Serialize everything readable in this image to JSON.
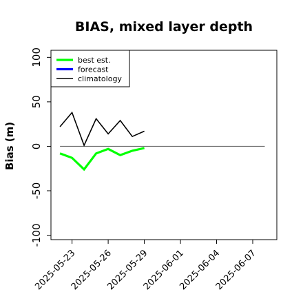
{
  "chart_data": {
    "type": "line",
    "title": "BIAS, mixed layer depth",
    "ylabel": "Bias (m)",
    "xlabel": "",
    "ylim": [
      -105,
      108
    ],
    "xlim": [
      "2025-05-21 06:00",
      "2025-06-09"
    ],
    "yticks": [
      -100,
      -50,
      0,
      50,
      100
    ],
    "xticks": [
      {
        "date": "2025-05-23",
        "label": "2025-05-23",
        "color": "#000000"
      },
      {
        "date": "2025-05-26",
        "label": "2025-05-26",
        "color": "#000000"
      },
      {
        "date": "2025-05-29",
        "label": "2025-05-29",
        "color": "#228B22"
      },
      {
        "date": "2025-06-01",
        "label": "2025-06-01",
        "color": "#000000"
      },
      {
        "date": "2025-06-04",
        "label": "2025-06-04",
        "color": "#000000"
      },
      {
        "date": "2025-06-07",
        "label": "2025-06-07",
        "color": "#000000"
      }
    ],
    "reference_line": {
      "y": 0,
      "from": "2025-05-22",
      "to": "2025-06-08",
      "color": "#666666"
    },
    "legend_position": "top-left",
    "legend": [
      {
        "name": "best est.",
        "color": "#00ff00"
      },
      {
        "name": "forecast",
        "color": "#0000ff"
      },
      {
        "name": "climatology",
        "color": "#000000"
      }
    ],
    "series": [
      {
        "name": "best est.",
        "color": "#00ff00",
        "x": [
          "2025-05-22",
          "2025-05-23",
          "2025-05-24",
          "2025-05-25",
          "2025-05-26",
          "2025-05-27",
          "2025-05-28",
          "2025-05-29"
        ],
        "y": [
          -8,
          -13,
          -26,
          -8,
          -3,
          -10,
          -5,
          -2
        ]
      },
      {
        "name": "climatology",
        "color": "#000000",
        "x": [
          "2025-05-22",
          "2025-05-23",
          "2025-05-24",
          "2025-05-25",
          "2025-05-26",
          "2025-05-27",
          "2025-05-28",
          "2025-05-29"
        ],
        "y": [
          22,
          38,
          1,
          31,
          14,
          29,
          11,
          17
        ]
      }
    ]
  }
}
